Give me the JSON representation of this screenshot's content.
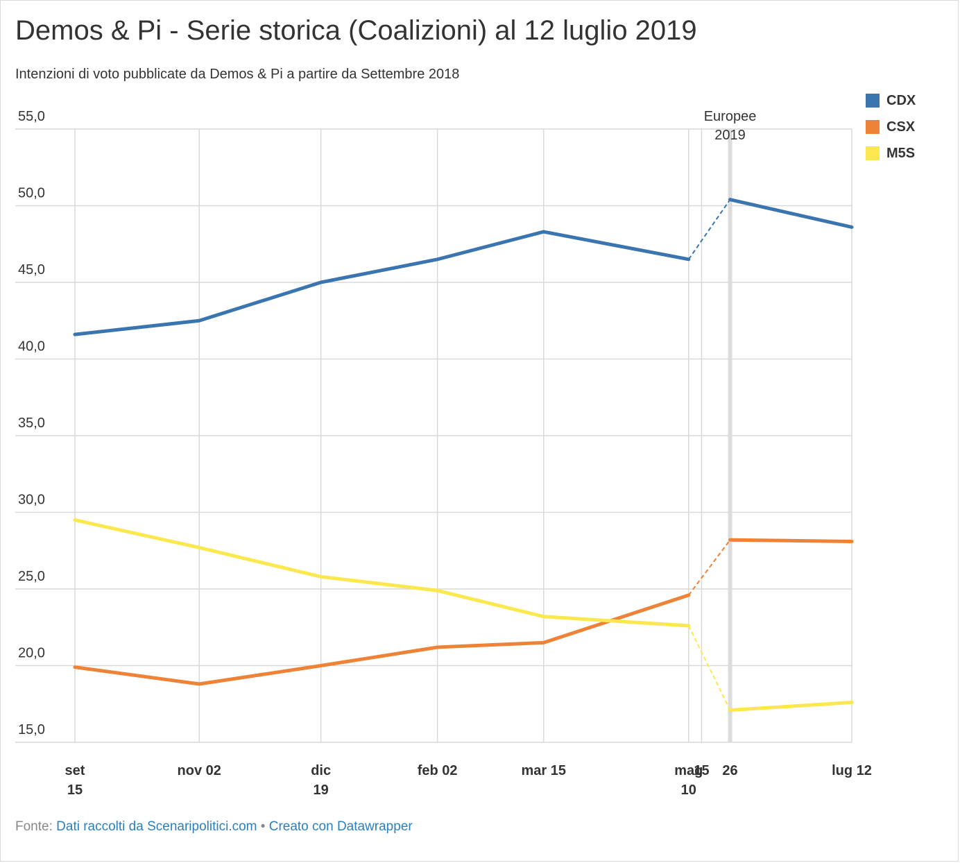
{
  "title": "Demos & Pi - Serie storica (Coalizioni) al 12 luglio 2019",
  "subtitle": "Intenzioni di voto pubblicate da Demos & Pi a partire da Settembre 2018",
  "footer": {
    "source_prefix": "Fonte:",
    "source_link": "Dati raccolti da Scenaripolitici.com",
    "separator": "•",
    "credit_link": "Creato con Datawrapper"
  },
  "annotation": {
    "line1": "Europee",
    "line2": "2019"
  },
  "chart_data": {
    "type": "line",
    "ylim": [
      15,
      55
    ],
    "y_ticks": [
      "55,0",
      "50,0",
      "45,0",
      "40,0",
      "35,0",
      "30,0",
      "25,0",
      "20,0",
      "15,0"
    ],
    "x": [
      "2018-09-15",
      "2018-11-02",
      "2018-12-19",
      "2019-02-02",
      "2019-03-15",
      "2019-05-10",
      "2019-05-26",
      "2019-07-12"
    ],
    "x_tick_labels": [
      {
        "date": "2018-09-15",
        "line1": "set",
        "line2": "15"
      },
      {
        "date": "2018-11-02",
        "line1": "nov 02",
        "line2": ""
      },
      {
        "date": "2018-12-19",
        "line1": "dic",
        "line2": "19"
      },
      {
        "date": "2019-02-02",
        "line1": "feb 02",
        "line2": ""
      },
      {
        "date": "2019-03-15",
        "line1": "mar 15",
        "line2": ""
      },
      {
        "date": "2019-05-10",
        "line1": "mag",
        "line2": "10"
      },
      {
        "date": "2019-05-15",
        "line1": "15",
        "line2": ""
      },
      {
        "date": "2019-05-26",
        "line1": "26",
        "line2": ""
      },
      {
        "date": "2019-07-12",
        "line1": "lug 12",
        "line2": ""
      }
    ],
    "gridlines_x": [
      "2018-09-15",
      "2018-11-02",
      "2018-12-19",
      "2019-02-02",
      "2019-03-15",
      "2019-05-10",
      "2019-05-15",
      "2019-07-12"
    ],
    "highlight_date": "2019-05-26",
    "dashed_segment_between": [
      "2019-05-10",
      "2019-05-26"
    ],
    "series": [
      {
        "name": "CDX",
        "color": "#3a75b0",
        "values": [
          41.6,
          42.5,
          45.0,
          46.5,
          48.3,
          46.5,
          50.4,
          48.6
        ]
      },
      {
        "name": "CSX",
        "color": "#ee8236",
        "values": [
          19.9,
          18.8,
          20.0,
          21.2,
          21.5,
          24.6,
          28.2,
          28.1
        ]
      },
      {
        "name": "M5S",
        "color": "#fbe84f",
        "values": [
          29.5,
          27.7,
          25.8,
          24.9,
          23.2,
          22.6,
          17.1,
          17.6
        ]
      }
    ]
  }
}
